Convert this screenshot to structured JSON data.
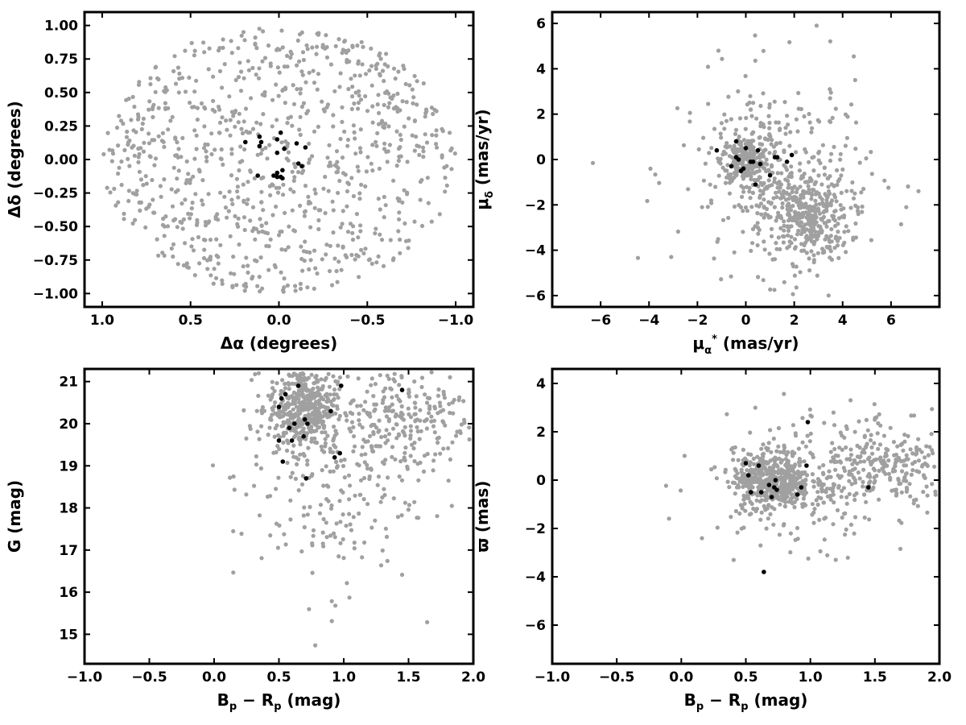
{
  "chart_data": [
    {
      "type": "scatter",
      "xlabel": "Δα (degrees)",
      "ylabel": "Δδ (degrees)",
      "xlim": [
        1.1,
        -1.1
      ],
      "ylim": [
        -1.1,
        1.1
      ],
      "xticks": [
        1.0,
        0.5,
        0.0,
        -0.5,
        -1.0
      ],
      "xtick_labels": [
        "1.0",
        "0.5",
        "0.0",
        "−0.5",
        "−1.0"
      ],
      "yticks": [
        -1.0,
        -0.75,
        -0.5,
        -0.25,
        0.0,
        0.25,
        0.5,
        0.75,
        1.0
      ],
      "ytick_labels": [
        "−1.00",
        "−0.75",
        "−0.50",
        "−0.25",
        "0.00",
        "0.25",
        "0.50",
        "0.75",
        "1.00"
      ],
      "series": [
        {
          "color": "#a0a0a0",
          "count": 900,
          "field_distribution": {
            "shape": "disk",
            "center": [
              0,
              0
            ],
            "radius": 1.0
          }
        },
        {
          "color": "#000000",
          "x": [
            -0.01,
            0.11,
            0.11,
            0.19,
            0.12,
            0.01,
            0.03,
            0.01,
            -0.02,
            -0.03,
            -0.1,
            -0.15,
            0.1,
            -0.11,
            -0.01,
            -0.13,
            0.01,
            0.01,
            -0.02
          ],
          "y": [
            0.2,
            0.17,
            0.1,
            0.13,
            -0.12,
            -0.13,
            -0.12,
            -0.1,
            -0.08,
            0.08,
            0.12,
            0.09,
            0.13,
            -0.03,
            -0.13,
            -0.05,
            0.15,
            0.05,
            -0.14
          ]
        }
      ]
    },
    {
      "type": "scatter",
      "xlabel_main": "μ",
      "xlabel_sub": "α",
      "xlabel_sup": "*",
      "xlabel_unit": "(mas/yr)",
      "ylabel_main": "μ",
      "ylabel_sub": "δ",
      "ylabel_unit": "(mas/yr)",
      "xlim": [
        -8,
        8
      ],
      "ylim": [
        -6.5,
        6.5
      ],
      "xticks": [
        -6,
        -4,
        -2,
        0,
        2,
        4,
        6
      ],
      "xtick_labels": [
        "−6",
        "−4",
        "−2",
        "0",
        "2",
        "4",
        "6"
      ],
      "yticks": [
        -6,
        -4,
        -2,
        0,
        2,
        4,
        6
      ],
      "ytick_labels": [
        "−6",
        "−4",
        "−2",
        "0",
        "2",
        "4",
        "6"
      ],
      "series": [
        {
          "color": "#a0a0a0",
          "count": 900,
          "clusters": [
            {
              "center": [
                0.0,
                0.0
              ],
              "spread": [
                0.5,
                0.5
              ],
              "count": 220
            },
            {
              "center": [
                2.5,
                -2.5
              ],
              "spread": [
                0.9,
                1.0
              ],
              "count": 380
            },
            {
              "center": [
                1.2,
                -0.5
              ],
              "spread": [
                2.0,
                2.2
              ],
              "count": 300
            }
          ]
        },
        {
          "color": "#000000",
          "x": [
            -1.2,
            -0.4,
            -0.3,
            -0.1,
            0.0,
            0.3,
            0.4,
            0.5,
            1.0,
            1.2,
            1.3,
            1.7,
            1.9,
            -0.6,
            -0.2,
            0.2,
            -0.4,
            0.6
          ],
          "y": [
            0.4,
            0.8,
            0.0,
            -0.4,
            0.5,
            -0.1,
            -1.1,
            0.4,
            -0.7,
            0.1,
            0.1,
            -0.1,
            0.2,
            -0.3,
            -0.5,
            -0.1,
            0.1,
            -0.2
          ]
        }
      ]
    },
    {
      "type": "scatter",
      "xlabel": "Bp − Rp (mag)",
      "xlabel_main": "B",
      "xlabel_sub1": "p",
      "xlabel_mid": " − R",
      "xlabel_sub2": "p",
      "xlabel_unit": " (mag)",
      "ylabel": "G (mag)",
      "xlim": [
        -1.0,
        2.0
      ],
      "ylim": [
        14.3,
        21.3
      ],
      "xticks": [
        -1.0,
        -0.5,
        0.0,
        0.5,
        1.0,
        1.5,
        2.0
      ],
      "xtick_labels": [
        "−1.0",
        "−0.5",
        "0.0",
        "0.5",
        "1.0",
        "1.5",
        "2.0"
      ],
      "yticks": [
        15,
        16,
        17,
        18,
        19,
        20,
        21
      ],
      "ytick_labels": [
        "15",
        "16",
        "17",
        "18",
        "19",
        "20",
        "21"
      ],
      "series": [
        {
          "color": "#a0a0a0",
          "count": 900,
          "clusters": [
            {
              "center": [
                0.68,
                20.4
              ],
              "spread": [
                0.13,
                0.5
              ],
              "count": 420
            },
            {
              "center": [
                1.5,
                20.2
              ],
              "spread": [
                0.3,
                0.7
              ],
              "count": 260
            },
            {
              "center": [
                0.85,
                18.6
              ],
              "spread": [
                0.35,
                1.3
              ],
              "count": 220
            }
          ]
        },
        {
          "color": "#000000",
          "x": [
            0.5,
            0.55,
            0.52,
            0.65,
            0.7,
            0.72,
            0.9,
            0.98,
            0.6,
            0.62,
            0.71,
            0.53,
            0.93,
            0.97,
            0.69,
            1.45,
            0.5,
            0.58
          ],
          "y": [
            20.4,
            20.7,
            20.6,
            20.9,
            20.1,
            20.0,
            20.3,
            20.9,
            19.6,
            20.0,
            18.7,
            19.1,
            19.2,
            19.3,
            19.7,
            20.8,
            19.6,
            19.9
          ]
        }
      ]
    },
    {
      "type": "scatter",
      "xlabel": "Bp − Rp (mag)",
      "xlabel_main": "B",
      "xlabel_sub1": "p",
      "xlabel_mid": " − R",
      "xlabel_sub2": "p",
      "xlabel_unit": " (mag)",
      "ylabel": "ϖ (mas)",
      "xlim": [
        -1.0,
        2.0
      ],
      "ylim": [
        -7.6,
        4.6
      ],
      "xticks": [
        -1.0,
        -0.5,
        0.0,
        0.5,
        1.0,
        1.5,
        2.0
      ],
      "xtick_labels": [
        "−1.0",
        "−0.5",
        "0.0",
        "0.5",
        "1.0",
        "1.5",
        "2.0"
      ],
      "yticks": [
        -6,
        -4,
        -2,
        0,
        2,
        4
      ],
      "ytick_labels": [
        "−6",
        "−4",
        "−2",
        "0",
        "2",
        "4"
      ],
      "series": [
        {
          "color": "#a0a0a0",
          "count": 900,
          "clusters": [
            {
              "center": [
                0.7,
                0.0
              ],
              "spread": [
                0.15,
                0.6
              ],
              "count": 480
            },
            {
              "center": [
                1.6,
                0.5
              ],
              "spread": [
                0.25,
                0.8
              ],
              "count": 220
            },
            {
              "center": [
                1.0,
                0.0
              ],
              "spread": [
                0.4,
                1.4
              ],
              "count": 200
            }
          ]
        },
        {
          "color": "#000000",
          "x": [
            0.5,
            0.52,
            0.54,
            0.6,
            0.62,
            0.7,
            0.72,
            0.74,
            0.9,
            0.93,
            0.97,
            0.98,
            1.45,
            0.64,
            0.68,
            0.73
          ],
          "y": [
            0.7,
            0.2,
            -0.5,
            0.6,
            -0.5,
            -0.7,
            -0.3,
            -0.4,
            -0.6,
            -0.3,
            0.6,
            2.4,
            -0.3,
            -3.8,
            -0.2,
            0.0
          ]
        }
      ]
    }
  ]
}
